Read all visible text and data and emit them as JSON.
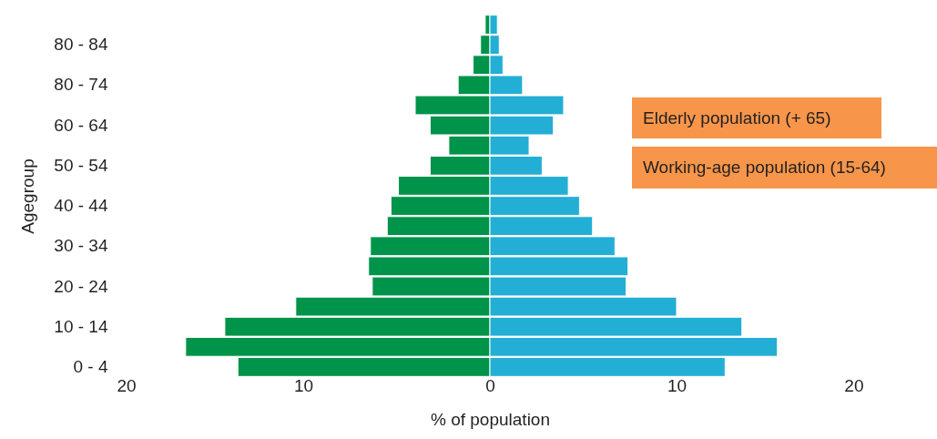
{
  "chart_data": {
    "type": "bar",
    "orientation": "horizontal",
    "xlabel": "% of population",
    "ylabel": "Agegroup",
    "categories": [
      null,
      "80 - 84",
      null,
      "80 - 74",
      null,
      "60 - 64",
      null,
      "50 - 54",
      null,
      "40 - 44",
      null,
      "30 - 34",
      null,
      "20 - 24",
      null,
      "10 - 14",
      null,
      "0 - 4"
    ],
    "series": [
      {
        "color": "#00934a",
        "values": [
          -0.25,
          -0.5,
          -0.9,
          -1.7,
          -4.0,
          -3.2,
          -2.2,
          -3.2,
          -4.9,
          -5.3,
          -5.5,
          -6.4,
          -6.5,
          -6.3,
          -10.4,
          -14.2,
          -16.3,
          -13.5
        ]
      },
      {
        "color": "#23aed5",
        "values": [
          0.4,
          0.5,
          0.7,
          1.75,
          3.95,
          3.4,
          2.1,
          2.8,
          4.2,
          4.8,
          5.5,
          6.7,
          7.4,
          7.3,
          10.0,
          13.5,
          15.4,
          12.6
        ]
      }
    ],
    "xlim": [
      -20,
      20
    ],
    "xticks": [
      {
        "value": -20,
        "label": "20"
      },
      {
        "value": -10,
        "label": "10"
      },
      0,
      10,
      20
    ],
    "grid": false,
    "stacked": true,
    "annotations": [
      "Elderly population (+ 65)",
      "Working-age population (15-64)"
    ]
  }
}
